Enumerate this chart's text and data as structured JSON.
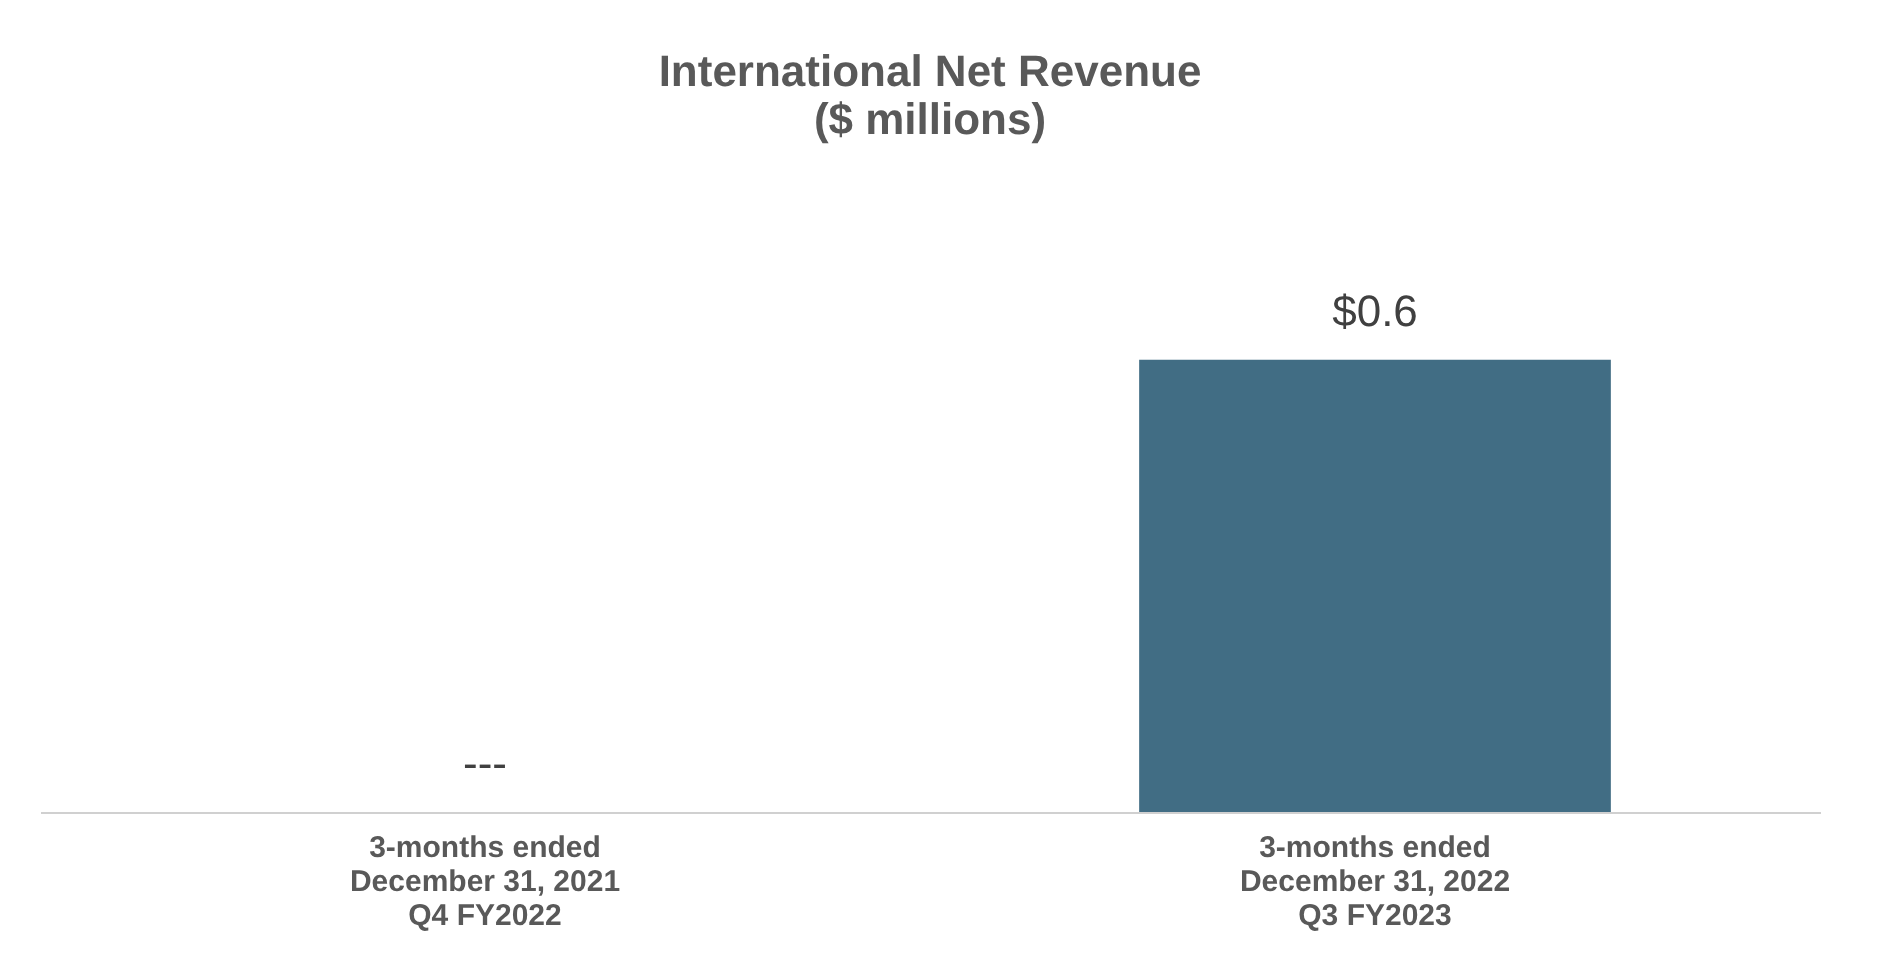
{
  "chart_data": {
    "type": "bar",
    "title": "International Net Revenue\n($ millions)",
    "categories": [
      "3-months ended\nDecember 31, 2021\nQ4 FY2022",
      "3-months ended\nDecember 31, 2022\nQ3 FY2023"
    ],
    "values": [
      0,
      0.6
    ],
    "color": "#416d84",
    "value_labels": [
      "---",
      "$0.6"
    ],
    "grid": false,
    "tick_labels": "x"
  }
}
